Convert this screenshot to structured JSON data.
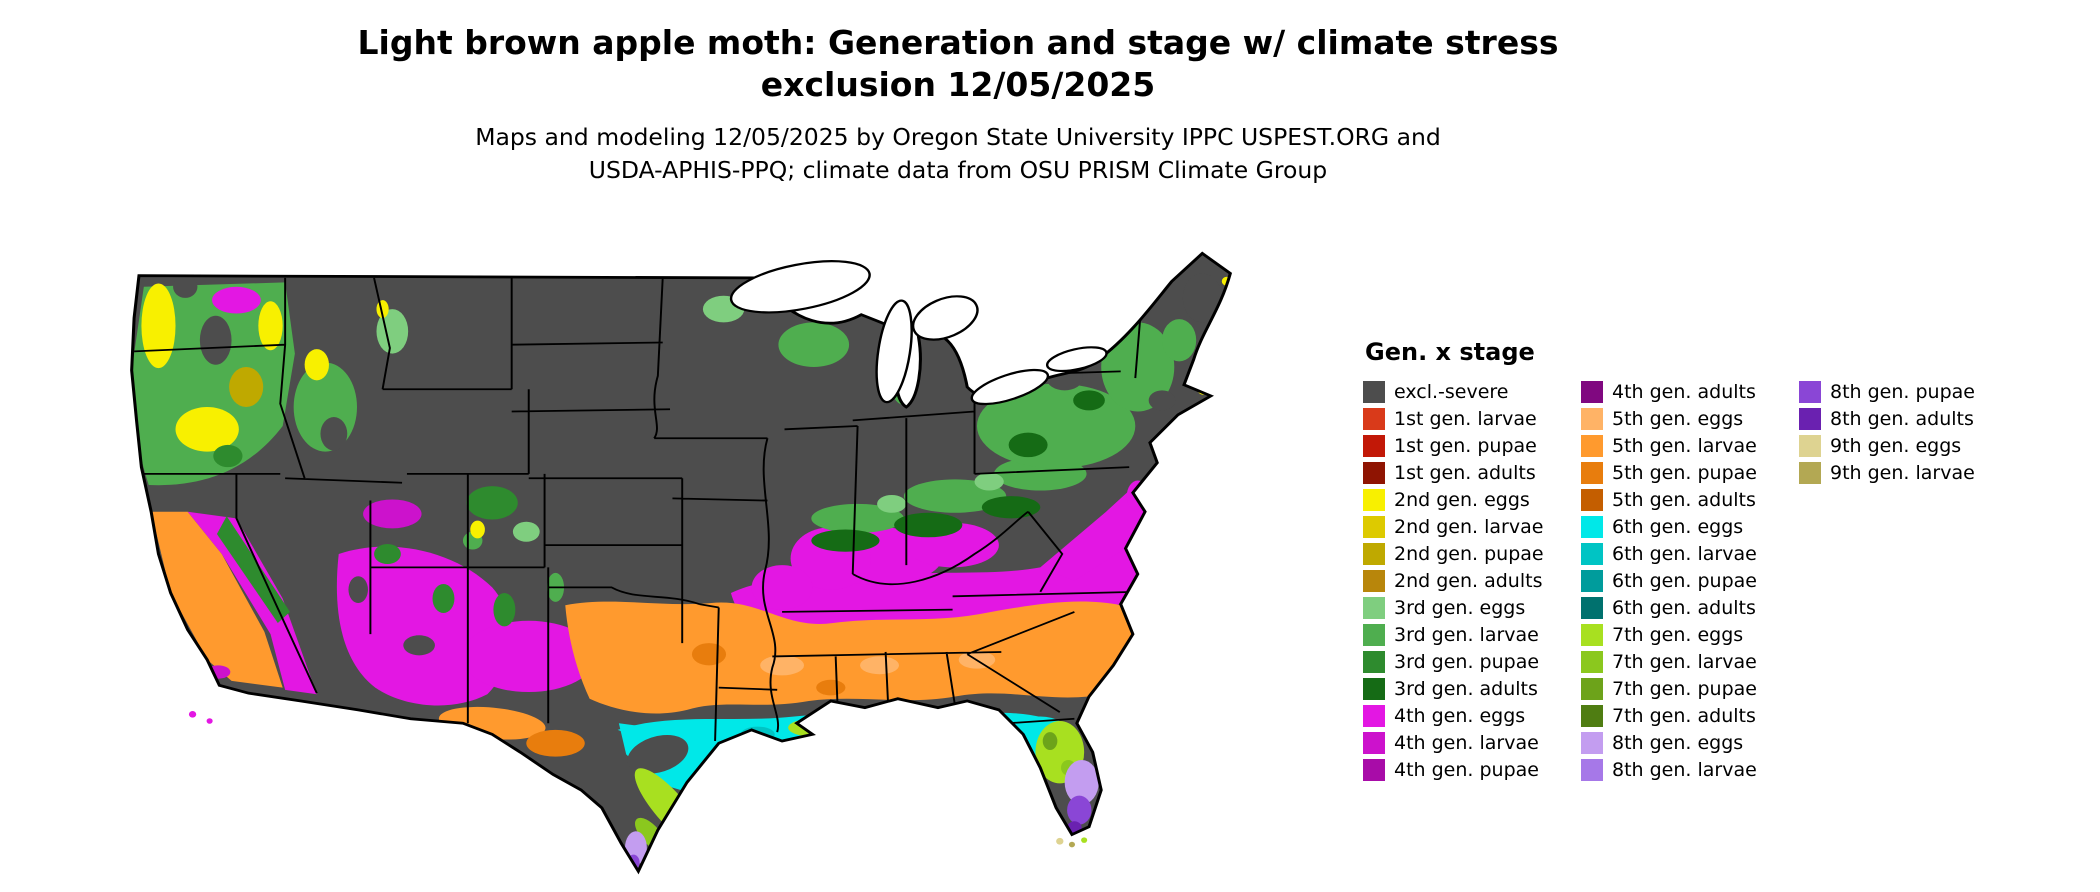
{
  "header": {
    "title_line1": "Light brown apple moth: Generation and stage w/ climate stress",
    "title_line2": "exclusion 12/05/2025",
    "subtitle_line1": "Maps and modeling 12/05/2025 by Oregon State University IPPC USPEST.ORG and",
    "subtitle_line2": "USDA-APHIS-PPQ; climate data from OSU PRISM Climate Group"
  },
  "legend": {
    "title": "Gen. x stage",
    "entries": [
      {
        "label": "excl.-severe",
        "color": "#4d4d4d"
      },
      {
        "label": "1st gen. larvae",
        "color": "#d93a1a"
      },
      {
        "label": "1st gen. pupae",
        "color": "#c21807"
      },
      {
        "label": "1st gen. adults",
        "color": "#8f1402"
      },
      {
        "label": "2nd gen. eggs",
        "color": "#f8f000"
      },
      {
        "label": "2nd gen. larvae",
        "color": "#ddca00"
      },
      {
        "label": "2nd gen. pupae",
        "color": "#bfa900"
      },
      {
        "label": "2nd gen. adults",
        "color": "#b8860b"
      },
      {
        "label": "3rd gen. eggs",
        "color": "#7fce7f"
      },
      {
        "label": "3rd gen. larvae",
        "color": "#4fae4f"
      },
      {
        "label": "3rd gen. pupae",
        "color": "#2e8b2e"
      },
      {
        "label": "3rd gen. adults",
        "color": "#156b15"
      },
      {
        "label": "4th gen. eggs",
        "color": "#e317e3"
      },
      {
        "label": "4th gen. larvae",
        "color": "#cc12cc"
      },
      {
        "label": "4th gen. pupae",
        "color": "#a80ca8"
      },
      {
        "label": "4th gen. adults",
        "color": "#800880"
      },
      {
        "label": "5th gen. eggs",
        "color": "#ffb366"
      },
      {
        "label": "5th gen. larvae",
        "color": "#ff9a2e"
      },
      {
        "label": "5th gen. pupae",
        "color": "#e87d0d"
      },
      {
        "label": "5th gen. adults",
        "color": "#c45e00"
      },
      {
        "label": "6th gen. eggs",
        "color": "#00e8e8"
      },
      {
        "label": "6th gen. larvae",
        "color": "#00c4c4"
      },
      {
        "label": "6th gen. pupae",
        "color": "#009c9c"
      },
      {
        "label": "6th gen. adults",
        "color": "#00716e"
      },
      {
        "label": "7th gen. eggs",
        "color": "#a8e020"
      },
      {
        "label": "7th gen. larvae",
        "color": "#8bc81e"
      },
      {
        "label": "7th gen. pupae",
        "color": "#6da31a"
      },
      {
        "label": "7th gen. adults",
        "color": "#4f7d12"
      },
      {
        "label": "8th gen. eggs",
        "color": "#c39df0"
      },
      {
        "label": "8th gen. larvae",
        "color": "#a678e8"
      },
      {
        "label": "8th gen. pupae",
        "color": "#8a46d6"
      },
      {
        "label": "8th gen. adults",
        "color": "#6a21b0"
      },
      {
        "label": "9th gen. eggs",
        "color": "#ded391"
      },
      {
        "label": "9th gen. larvae",
        "color": "#b3a853"
      }
    ]
  }
}
